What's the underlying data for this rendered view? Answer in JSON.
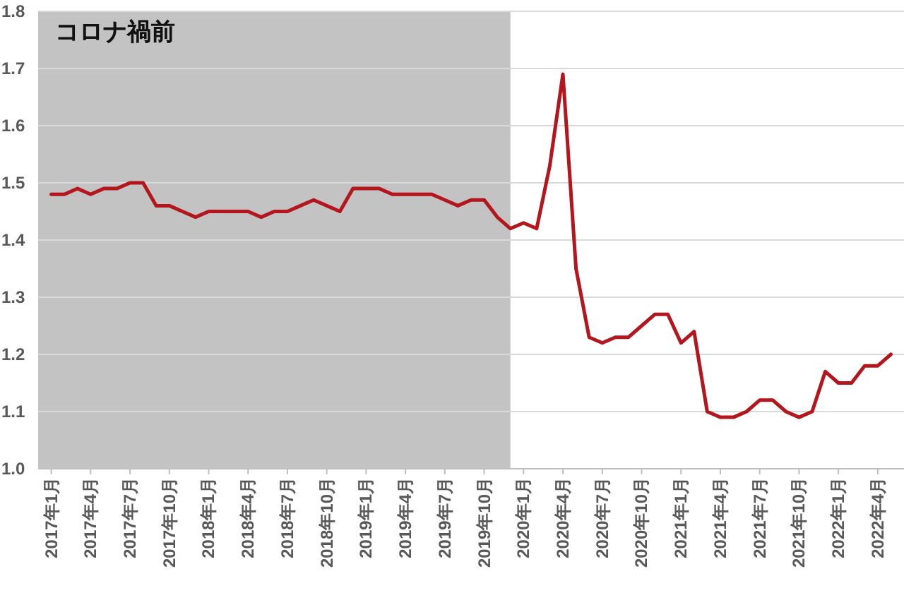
{
  "chart_data": {
    "type": "line",
    "x": [
      "2017-01",
      "2017-02",
      "2017-03",
      "2017-04",
      "2017-05",
      "2017-06",
      "2017-07",
      "2017-08",
      "2017-09",
      "2017-10",
      "2017-11",
      "2017-12",
      "2018-01",
      "2018-02",
      "2018-03",
      "2018-04",
      "2018-05",
      "2018-06",
      "2018-07",
      "2018-08",
      "2018-09",
      "2018-10",
      "2018-11",
      "2018-12",
      "2019-01",
      "2019-02",
      "2019-03",
      "2019-04",
      "2019-05",
      "2019-06",
      "2019-07",
      "2019-08",
      "2019-09",
      "2019-10",
      "2019-11",
      "2019-12",
      "2020-01",
      "2020-02",
      "2020-03",
      "2020-04",
      "2020-05",
      "2020-06",
      "2020-07",
      "2020-08",
      "2020-09",
      "2020-10",
      "2020-11",
      "2020-12",
      "2021-01",
      "2021-02",
      "2021-03",
      "2021-04",
      "2021-05",
      "2021-06",
      "2021-07",
      "2021-08",
      "2021-09",
      "2021-10",
      "2021-11",
      "2021-12",
      "2022-01",
      "2022-02",
      "2022-03",
      "2022-04",
      "2022-05"
    ],
    "series": [
      {
        "color": "#b3161c",
        "values": [
          1.48,
          1.48,
          1.49,
          1.48,
          1.49,
          1.49,
          1.5,
          1.5,
          1.46,
          1.46,
          1.45,
          1.44,
          1.45,
          1.45,
          1.45,
          1.45,
          1.44,
          1.45,
          1.45,
          1.46,
          1.47,
          1.46,
          1.45,
          1.49,
          1.49,
          1.49,
          1.48,
          1.48,
          1.48,
          1.48,
          1.47,
          1.46,
          1.47,
          1.47,
          1.44,
          1.42,
          1.43,
          1.42,
          1.53,
          1.69,
          1.35,
          1.23,
          1.22,
          1.23,
          1.23,
          1.25,
          1.27,
          1.27,
          1.22,
          1.24,
          1.1,
          1.09,
          1.09,
          1.1,
          1.12,
          1.12,
          1.1,
          1.09,
          1.1,
          1.17,
          1.15,
          1.15,
          1.18,
          1.18,
          1.2
        ]
      }
    ],
    "xlim": [
      "2016-12",
      "2022-06"
    ],
    "xticks": [
      {
        "value": "2017-01",
        "label": "2017年1月"
      },
      {
        "value": "2017-04",
        "label": "2017年4月"
      },
      {
        "value": "2017-07",
        "label": "2017年7月"
      },
      {
        "value": "2017-10",
        "label": "2017年10月"
      },
      {
        "value": "2018-01",
        "label": "2018年1月"
      },
      {
        "value": "2018-04",
        "label": "2018年4月"
      },
      {
        "value": "2018-07",
        "label": "2018年7月"
      },
      {
        "value": "2018-10",
        "label": "2018年10月"
      },
      {
        "value": "2019-01",
        "label": "2019年1月"
      },
      {
        "value": "2019-04",
        "label": "2019年4月"
      },
      {
        "value": "2019-07",
        "label": "2019年7月"
      },
      {
        "value": "2019-10",
        "label": "2019年10月"
      },
      {
        "value": "2020-01",
        "label": "2020年1月"
      },
      {
        "value": "2020-04",
        "label": "2020年4月"
      },
      {
        "value": "2020-07",
        "label": "2020年7月"
      },
      {
        "value": "2020-10",
        "label": "2020年10月"
      },
      {
        "value": "2021-01",
        "label": "2021年1月"
      },
      {
        "value": "2021-04",
        "label": "2021年4月"
      },
      {
        "value": "2021-07",
        "label": "2021年7月"
      },
      {
        "value": "2021-10",
        "label": "2021年10月"
      },
      {
        "value": "2022-01",
        "label": "2022年1月"
      },
      {
        "value": "2022-04",
        "label": "2022年4月"
      }
    ],
    "ylim": [
      1.0,
      1.8
    ],
    "yticks": [
      {
        "value": 1,
        "label": "1.0"
      },
      1.1,
      1.2,
      1.3,
      1.4,
      1.5,
      1.6,
      1.7,
      1.8
    ],
    "grid": "y",
    "bands": [
      {
        "axis": "x",
        "from": "2016-12",
        "to": "2019-12",
        "label": "コロナ禍前",
        "color": "#c3c3c3"
      }
    ]
  }
}
